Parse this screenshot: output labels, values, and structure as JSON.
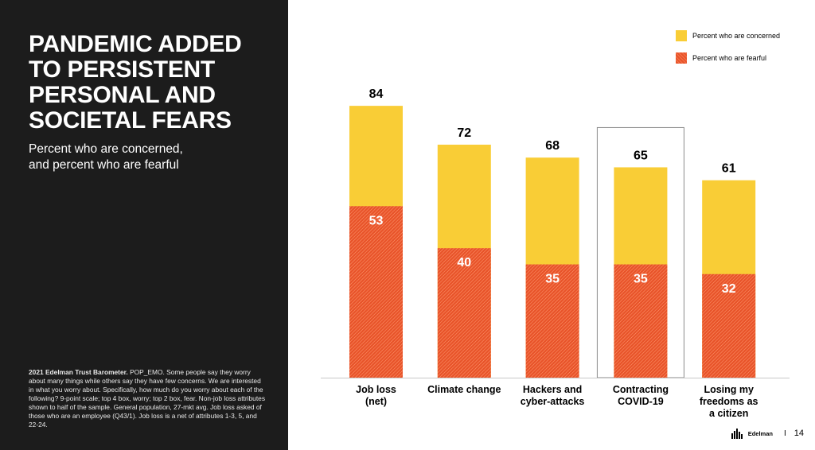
{
  "left_panel": {
    "title": "PANDEMIC ADDED TO PERSISTENT PERSONAL AND SOCIETAL FEARS",
    "subtitle_lines": [
      "Percent who are concerned,",
      "and percent who are fearful"
    ],
    "source_bold": "2021 Edelman Trust Barometer.",
    "source_text": " POP_EMO. Some people say they worry about many things while others say they have few concerns. We are interested in what you worry about. Specifically, how much do you worry about each of the following? 9-point scale; top 4 box, worry; top 2 box, fear. Non-job loss attributes shown to half of the sample. General population, 27-mkt avg. Job loss asked of those who are an employee (Q43/1). Job loss is a net of attributes 1-3, 5, and 22-24."
  },
  "legend": {
    "concerned": "Percent who are concerned",
    "fearful": "Percent who are fearful"
  },
  "chart_data": {
    "type": "bar",
    "categories": [
      [
        "Job loss",
        "(net)"
      ],
      [
        "Climate change"
      ],
      [
        "Hackers and",
        "cyber-attacks"
      ],
      [
        "Contracting",
        "COVID-19"
      ],
      [
        "Losing my",
        "freedoms as",
        "a citizen"
      ]
    ],
    "series": [
      {
        "name": "Percent who are concerned",
        "values": [
          84,
          72,
          68,
          65,
          61
        ]
      },
      {
        "name": "Percent who are fearful",
        "values": [
          53,
          40,
          35,
          35,
          32
        ]
      }
    ],
    "highlighted_category": 3,
    "ylim": [
      0,
      100
    ],
    "colors": {
      "concerned": "#f9cd36",
      "fearful": "#e8542a"
    }
  },
  "footer": {
    "brand": "Edelman",
    "separator": "I",
    "page": "14"
  }
}
